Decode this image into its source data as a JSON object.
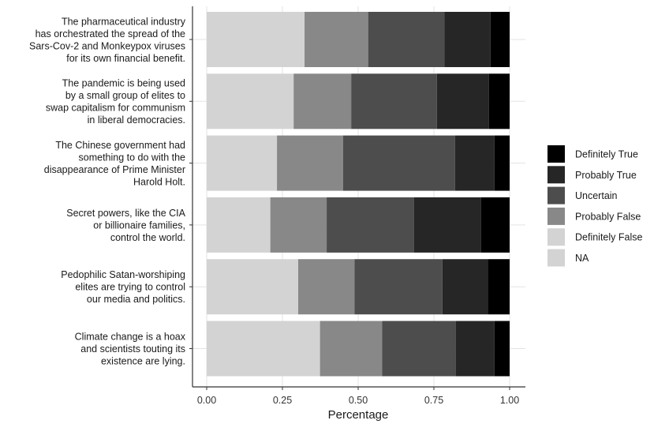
{
  "chart_data": {
    "type": "bar",
    "orientation": "horizontal",
    "stacked": true,
    "categories": [
      [
        "The pharmaceutical industry",
        "has orchestrated the spread of the",
        "Sars-Cov-2 and Monkeypox viruses",
        "for its own financial benefit."
      ],
      [
        "The pandemic is being used",
        "by a small group of elites to",
        "swap capitalism for communism",
        "in liberal democracies."
      ],
      [
        "The Chinese government had",
        "something to do with the",
        "disappearance of Prime Minister",
        "Harold Holt."
      ],
      [
        "Secret powers, like the CIA",
        "or billionaire families,",
        "control the world."
      ],
      [
        "Pedophilic Satan-worshiping",
        "elites are trying to control",
        "our media and politics."
      ],
      [
        "Climate change is a hoax",
        "and scientists touting its",
        "existence are lying."
      ]
    ],
    "stack_order": [
      "NA",
      "Definitely False",
      "Probably False",
      "Uncertain",
      "Probably True",
      "Definitely True"
    ],
    "series": [
      {
        "name": "NA",
        "color": "#d3d3d3",
        "values": [
          0.0,
          0.0,
          0.0,
          0.0,
          0.0,
          0.0
        ]
      },
      {
        "name": "Definitely False",
        "color": "#d3d3d3",
        "values": [
          0.323,
          0.287,
          0.232,
          0.21,
          0.302,
          0.374
        ]
      },
      {
        "name": "Probably False",
        "color": "#888888",
        "values": [
          0.21,
          0.19,
          0.218,
          0.186,
          0.186,
          0.205
        ]
      },
      {
        "name": "Uncertain",
        "color": "#4d4d4d",
        "values": [
          0.252,
          0.283,
          0.37,
          0.288,
          0.29,
          0.243
        ]
      },
      {
        "name": "Probably True",
        "color": "#262626",
        "values": [
          0.152,
          0.172,
          0.13,
          0.222,
          0.15,
          0.128
        ]
      },
      {
        "name": "Definitely True",
        "color": "#000000",
        "values": [
          0.063,
          0.068,
          0.05,
          0.094,
          0.072,
          0.05
        ]
      }
    ],
    "legend": {
      "position": "right",
      "entries": [
        {
          "name": "Definitely True",
          "color": "#000000"
        },
        {
          "name": "Probably True",
          "color": "#262626"
        },
        {
          "name": "Uncertain",
          "color": "#4d4d4d"
        },
        {
          "name": "Probably False",
          "color": "#888888"
        },
        {
          "name": "Definitely False",
          "color": "#d3d3d3"
        },
        {
          "name": "NA",
          "color": "#d3d3d3"
        }
      ]
    },
    "xlabel": "Percentage",
    "ylabel": "",
    "xlim": [
      0,
      1
    ],
    "xticks": [
      0,
      0.25,
      0.5,
      0.75,
      1.0
    ],
    "xtick_labels": [
      "0.00",
      "0.25",
      "0.50",
      "0.75",
      "1.00"
    ],
    "grid": true
  }
}
